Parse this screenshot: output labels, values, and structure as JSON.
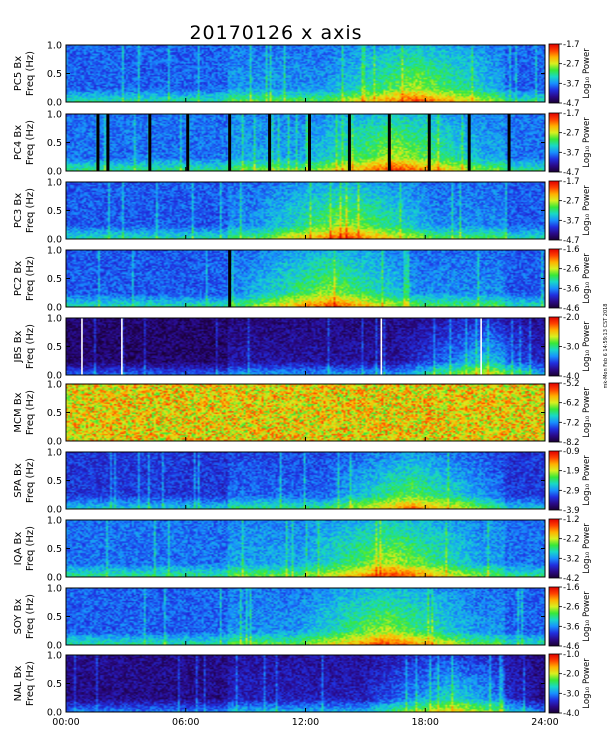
{
  "chart_data": {
    "type": "heatmap",
    "title": "20170126 x axis",
    "xlabel": "",
    "x_ticks": [
      "00:00",
      "06:00",
      "12:00",
      "18:00",
      "24:00"
    ],
    "x_range_hours": [
      0,
      24
    ],
    "y_ticks": [
      "0.0",
      "0.5",
      "1.0"
    ],
    "ylim": [
      0,
      1.0
    ],
    "grid": false,
    "colorbar_label": "Log₁₀ Power",
    "colormap": [
      "#1a0033",
      "#2a0a8a",
      "#2030e0",
      "#1890ff",
      "#18d8c8",
      "#38e838",
      "#d8f020",
      "#ffb000",
      "#ff4000",
      "#e00000"
    ],
    "colorbar_side_note": "mk-Mon Feb 6 14:59:13 CST 2018",
    "panels": [
      {
        "ylabel_top": "PC5 Bx",
        "ylabel_bottom": "Freq (Hz)",
        "cbar_ticks": [
          "-1.7",
          "-2.7",
          "-3.7",
          "-4.7"
        ],
        "cbar_range": [
          -4.7,
          -1.7
        ],
        "vertical_gaps": [],
        "level": 0.28,
        "event_centre_h": 17.5
      },
      {
        "ylabel_top": "PC4 Bx",
        "ylabel_bottom": "Freq (Hz)",
        "cbar_ticks": [
          "-1.7",
          "-2.7",
          "-3.7",
          "-4.7"
        ],
        "cbar_range": [
          -4.7,
          -1.7
        ],
        "vertical_gaps": [
          1.6,
          2.1,
          4.2,
          6.1,
          8.2,
          10.2,
          12.2,
          14.2,
          16.2,
          18.2,
          20.2,
          22.2
        ],
        "level": 0.3,
        "event_centre_h": 16.5
      },
      {
        "ylabel_top": "PC3 Bx",
        "ylabel_bottom": "Freq (Hz)",
        "cbar_ticks": [
          "-1.7",
          "-2.7",
          "-3.7",
          "-4.7"
        ],
        "cbar_range": [
          -4.7,
          -1.7
        ],
        "vertical_gaps": [],
        "level": 0.27,
        "event_centre_h": 14.0
      },
      {
        "ylabel_top": "PC2 Bx",
        "ylabel_bottom": "Freq (Hz)",
        "cbar_ticks": [
          "-1.6",
          "-2.6",
          "-3.6",
          "-4.6"
        ],
        "cbar_range": [
          -4.6,
          -1.6
        ],
        "vertical_gaps": [
          8.2
        ],
        "level": 0.27,
        "event_centre_h": 13.2
      },
      {
        "ylabel_top": "JBS Bx",
        "ylabel_bottom": "Freq (Hz)",
        "cbar_ticks": [
          "-2.0",
          "-3.0",
          "-4.0"
        ],
        "cbar_range": [
          -4.0,
          -2.0
        ],
        "vertical_gaps": [],
        "white_lines": [
          0.8,
          2.8,
          15.8,
          20.8
        ],
        "level": 0.12,
        "event_centre_h": 21.0
      },
      {
        "ylabel_top": "MCM Bx",
        "ylabel_bottom": "Freq (Hz)",
        "cbar_ticks": [
          "-5.2",
          "-6.2",
          "-7.2",
          "-8.2"
        ],
        "cbar_range": [
          -8.2,
          -5.2
        ],
        "vertical_gaps": [],
        "level": 0.72,
        "event_centre_h": 12.0
      },
      {
        "ylabel_top": "SPA Bx",
        "ylabel_bottom": "Freq (Hz)",
        "cbar_ticks": [
          "-0.9",
          "-1.9",
          "-2.9",
          "-3.9"
        ],
        "cbar_range": [
          -3.9,
          -0.9
        ],
        "vertical_gaps": [],
        "level": 0.22,
        "event_centre_h": 17.3
      },
      {
        "ylabel_top": "IQA Bx",
        "ylabel_bottom": "Freq (Hz)",
        "cbar_ticks": [
          "-1.2",
          "-2.2",
          "-3.2",
          "-4.2"
        ],
        "cbar_range": [
          -4.2,
          -1.2
        ],
        "vertical_gaps": [],
        "level": 0.3,
        "event_centre_h": 16.3
      },
      {
        "ylabel_top": "SOY Bx",
        "ylabel_bottom": "Freq (Hz)",
        "cbar_ticks": [
          "-1.6",
          "-2.6",
          "-3.6",
          "-4.6"
        ],
        "cbar_range": [
          -4.6,
          -1.6
        ],
        "vertical_gaps": [],
        "level": 0.28,
        "event_centre_h": 16.0
      },
      {
        "ylabel_top": "NAL Bx",
        "ylabel_bottom": "Freq (Hz)",
        "cbar_ticks": [
          "-1.0",
          "-2.0",
          "-3.0",
          "-4.0"
        ],
        "cbar_range": [
          -4.0,
          -1.0
        ],
        "vertical_gaps": [],
        "level": 0.18,
        "event_centre_h": 19.3
      }
    ]
  }
}
